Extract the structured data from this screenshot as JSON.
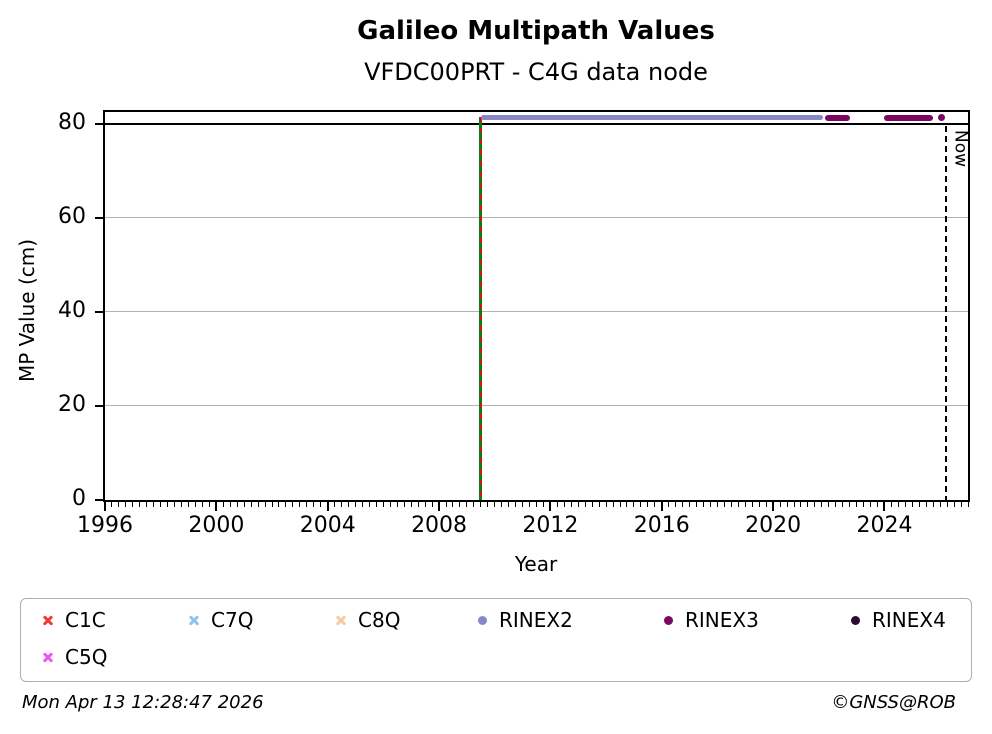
{
  "footer": {
    "timestamp": "Mon Apr 13 12:28:47 2026",
    "credit": "©GNSS@ROB"
  },
  "chart_data": {
    "type": "scatter",
    "title": "Galileo Multipath Values",
    "subtitle": "VFDC00PRT - C4G data node",
    "xlabel": "Year",
    "ylabel": "MP Value (cm)",
    "xlim": [
      1996,
      2027
    ],
    "ylim": [
      0,
      82.5
    ],
    "x_major_ticks": [
      1996,
      2000,
      2004,
      2008,
      2012,
      2016,
      2020,
      2024
    ],
    "x_minor_interval": 0.25,
    "y_ticks": [
      0,
      20,
      40,
      60,
      80
    ],
    "grid": {
      "horizontal_at": [
        20,
        40,
        60
      ],
      "color": "#b3b3b3"
    },
    "threshold_line": {
      "y": 80,
      "color": "#000000"
    },
    "event_line": {
      "x": 2009.5,
      "y_from": 0,
      "y_to": 81.4,
      "solid_color": "#0f7d0f",
      "dash_color": "#d21414"
    },
    "now_line": {
      "x": 2026.2,
      "label": "Now",
      "color": "#000000",
      "style": "dashed",
      "y_from": 0,
      "y_to": 79.6
    },
    "series": [
      {
        "name": "C1C",
        "marker": "x",
        "color": "#e8402c",
        "points": [],
        "segments": []
      },
      {
        "name": "C7Q",
        "marker": "x",
        "color": "#90c2ea",
        "points": [],
        "segments": []
      },
      {
        "name": "C8Q",
        "marker": "x",
        "color": "#f6c9a2",
        "points": [],
        "segments": []
      },
      {
        "name": "C5Q",
        "marker": "x",
        "color": "#ee58ee",
        "points": [],
        "segments": []
      },
      {
        "name": "RINEX2",
        "marker": "circle",
        "color": "#8786c7",
        "y_value": 81.3,
        "segments": [
          [
            2009.5,
            2021.8
          ]
        ],
        "points": []
      },
      {
        "name": "RINEX3",
        "marker": "circle",
        "color": "#7b0663",
        "y_value": 81.3,
        "segments": [
          [
            2021.85,
            2022.75
          ],
          [
            2024.0,
            2025.75
          ]
        ],
        "points": [
          [
            2026.05,
            81.3
          ]
        ]
      },
      {
        "name": "RINEX4",
        "marker": "circle",
        "color": "#2c0a33",
        "points": [],
        "segments": []
      }
    ],
    "legend": {
      "position": "bottom",
      "rows": [
        [
          "C1C",
          "C7Q",
          "C8Q",
          "RINEX2",
          "RINEX3",
          "RINEX4"
        ],
        [
          "C5Q"
        ]
      ]
    }
  }
}
